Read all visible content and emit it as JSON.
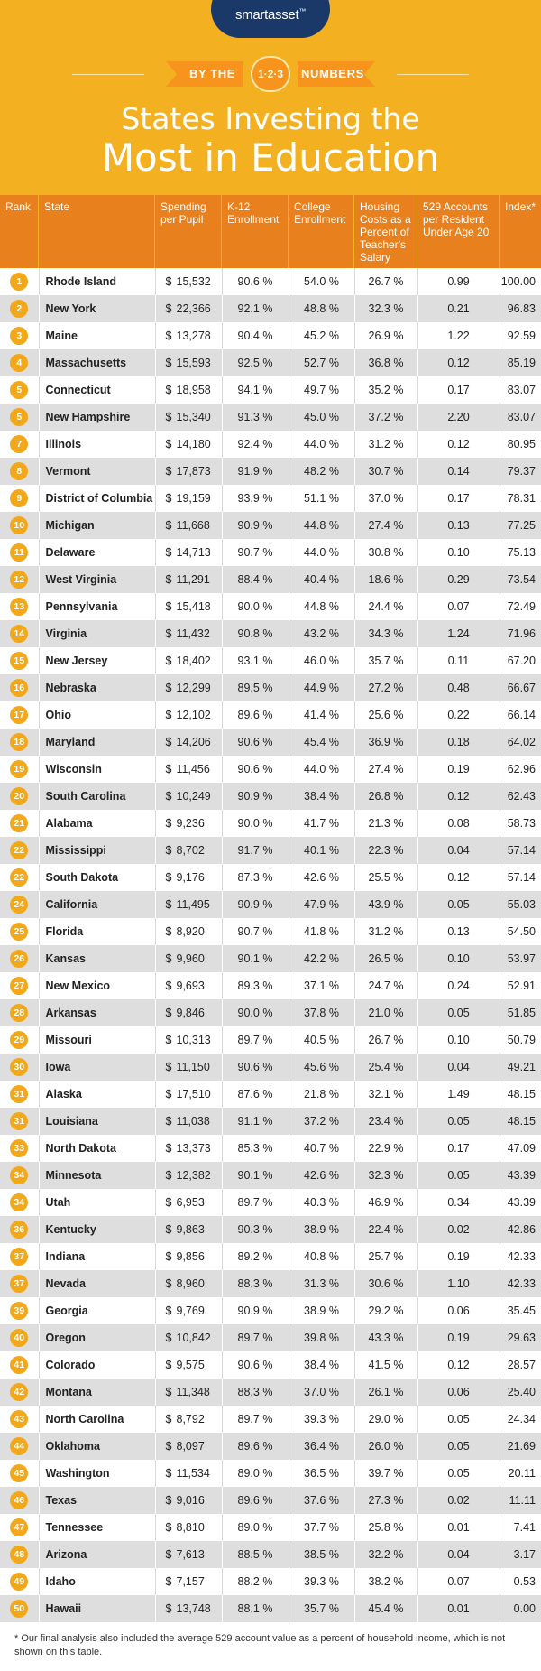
{
  "brand": {
    "name_a": "smart",
    "name_b": "asset",
    "trademark": "™"
  },
  "banner": {
    "left": "BY THE",
    "badge": "1·2·3",
    "right": "NUMBERS"
  },
  "title": {
    "line1": "States Investing the",
    "line2": "Most in Education"
  },
  "table": {
    "headers": [
      "Rank",
      "State",
      "Spending per Pupil",
      "K-12 Enrollment",
      "College Enrollment",
      "Housing Costs as a Percent of Teacher's Salary",
      "529 Accounts per Resident Under Age 20",
      "Index*"
    ],
    "rows": [
      {
        "rank": "1",
        "state": "Rhode Island",
        "cur": "$",
        "spend": "15,532",
        "k12": "90.6 %",
        "college": "54.0 %",
        "housing": "26.7 %",
        "accounts": "0.99",
        "index": "100.00"
      },
      {
        "rank": "2",
        "state": "New York",
        "cur": "$",
        "spend": "22,366",
        "k12": "92.1 %",
        "college": "48.8 %",
        "housing": "32.3 %",
        "accounts": "0.21",
        "index": "96.83"
      },
      {
        "rank": "3",
        "state": "Maine",
        "cur": "$",
        "spend": "13,278",
        "k12": "90.4 %",
        "college": "45.2 %",
        "housing": "26.9 %",
        "accounts": "1.22",
        "index": "92.59"
      },
      {
        "rank": "4",
        "state": "Massachusetts",
        "cur": "$",
        "spend": "15,593",
        "k12": "92.5 %",
        "college": "52.7 %",
        "housing": "36.8 %",
        "accounts": "0.12",
        "index": "85.19"
      },
      {
        "rank": "5",
        "state": "Connecticut",
        "cur": "$",
        "spend": "18,958",
        "k12": "94.1 %",
        "college": "49.7 %",
        "housing": "35.2 %",
        "accounts": "0.17",
        "index": "83.07"
      },
      {
        "rank": "5",
        "state": "New Hampshire",
        "cur": "$",
        "spend": "15,340",
        "k12": "91.3 %",
        "college": "45.0 %",
        "housing": "37.2 %",
        "accounts": "2.20",
        "index": "83.07"
      },
      {
        "rank": "7",
        "state": "Illinois",
        "cur": "$",
        "spend": "14,180",
        "k12": "92.4 %",
        "college": "44.0 %",
        "housing": "31.2 %",
        "accounts": "0.12",
        "index": "80.95"
      },
      {
        "rank": "8",
        "state": "Vermont",
        "cur": "$",
        "spend": "17,873",
        "k12": "91.9 %",
        "college": "48.2 %",
        "housing": "30.7 %",
        "accounts": "0.14",
        "index": "79.37"
      },
      {
        "rank": "9",
        "state": "District of Columbia",
        "cur": "$",
        "spend": "19,159",
        "k12": "93.9 %",
        "college": "51.1 %",
        "housing": "37.0 %",
        "accounts": "0.17",
        "index": "78.31"
      },
      {
        "rank": "10",
        "state": "Michigan",
        "cur": "$",
        "spend": "11,668",
        "k12": "90.9 %",
        "college": "44.8 %",
        "housing": "27.4 %",
        "accounts": "0.13",
        "index": "77.25"
      },
      {
        "rank": "11",
        "state": "Delaware",
        "cur": "$",
        "spend": "14,713",
        "k12": "90.7 %",
        "college": "44.0 %",
        "housing": "30.8 %",
        "accounts": "0.10",
        "index": "75.13"
      },
      {
        "rank": "12",
        "state": "West Virginia",
        "cur": "$",
        "spend": "11,291",
        "k12": "88.4 %",
        "college": "40.4 %",
        "housing": "18.6 %",
        "accounts": "0.29",
        "index": "73.54"
      },
      {
        "rank": "13",
        "state": "Pennsylvania",
        "cur": "$",
        "spend": "15,418",
        "k12": "90.0 %",
        "college": "44.8 %",
        "housing": "24.4 %",
        "accounts": "0.07",
        "index": "72.49"
      },
      {
        "rank": "14",
        "state": "Virginia",
        "cur": "$",
        "spend": "11,432",
        "k12": "90.8 %",
        "college": "43.2 %",
        "housing": "34.3 %",
        "accounts": "1.24",
        "index": "71.96"
      },
      {
        "rank": "15",
        "state": "New Jersey",
        "cur": "$",
        "spend": "18,402",
        "k12": "93.1 %",
        "college": "46.0 %",
        "housing": "35.7 %",
        "accounts": "0.11",
        "index": "67.20"
      },
      {
        "rank": "16",
        "state": "Nebraska",
        "cur": "$",
        "spend": "12,299",
        "k12": "89.5 %",
        "college": "44.9 %",
        "housing": "27.2 %",
        "accounts": "0.48",
        "index": "66.67"
      },
      {
        "rank": "17",
        "state": "Ohio",
        "cur": "$",
        "spend": "12,102",
        "k12": "89.6 %",
        "college": "41.4 %",
        "housing": "25.6 %",
        "accounts": "0.22",
        "index": "66.14"
      },
      {
        "rank": "18",
        "state": "Maryland",
        "cur": "$",
        "spend": "14,206",
        "k12": "90.6 %",
        "college": "45.4 %",
        "housing": "36.9 %",
        "accounts": "0.18",
        "index": "64.02"
      },
      {
        "rank": "19",
        "state": "Wisconsin",
        "cur": "$",
        "spend": "11,456",
        "k12": "90.6 %",
        "college": "44.0 %",
        "housing": "27.4 %",
        "accounts": "0.19",
        "index": "62.96"
      },
      {
        "rank": "20",
        "state": "South Carolina",
        "cur": "$",
        "spend": "10,249",
        "k12": "90.9 %",
        "college": "38.4 %",
        "housing": "26.8 %",
        "accounts": "0.12",
        "index": "62.43"
      },
      {
        "rank": "21",
        "state": "Alabama",
        "cur": "$",
        "spend": "9,236",
        "k12": "90.0 %",
        "college": "41.7 %",
        "housing": "21.3 %",
        "accounts": "0.08",
        "index": "58.73"
      },
      {
        "rank": "22",
        "state": "Mississippi",
        "cur": "$",
        "spend": "8,702",
        "k12": "91.7 %",
        "college": "40.1 %",
        "housing": "22.3 %",
        "accounts": "0.04",
        "index": "57.14"
      },
      {
        "rank": "22",
        "state": "South Dakota",
        "cur": "$",
        "spend": "9,176",
        "k12": "87.3 %",
        "college": "42.6 %",
        "housing": "25.5 %",
        "accounts": "0.12",
        "index": "57.14"
      },
      {
        "rank": "24",
        "state": "California",
        "cur": "$",
        "spend": "11,495",
        "k12": "90.9 %",
        "college": "47.9 %",
        "housing": "43.9 %",
        "accounts": "0.05",
        "index": "55.03"
      },
      {
        "rank": "25",
        "state": "Florida",
        "cur": "$",
        "spend": "8,920",
        "k12": "90.7 %",
        "college": "41.8 %",
        "housing": "31.2 %",
        "accounts": "0.13",
        "index": "54.50"
      },
      {
        "rank": "26",
        "state": "Kansas",
        "cur": "$",
        "spend": "9,960",
        "k12": "90.1 %",
        "college": "42.2 %",
        "housing": "26.5 %",
        "accounts": "0.10",
        "index": "53.97"
      },
      {
        "rank": "27",
        "state": "New Mexico",
        "cur": "$",
        "spend": "9,693",
        "k12": "89.3 %",
        "college": "37.1 %",
        "housing": "24.7 %",
        "accounts": "0.24",
        "index": "52.91"
      },
      {
        "rank": "28",
        "state": "Arkansas",
        "cur": "$",
        "spend": "9,846",
        "k12": "90.0 %",
        "college": "37.8 %",
        "housing": "21.0 %",
        "accounts": "0.05",
        "index": "51.85"
      },
      {
        "rank": "29",
        "state": "Missouri",
        "cur": "$",
        "spend": "10,313",
        "k12": "89.7 %",
        "college": "40.5 %",
        "housing": "26.7 %",
        "accounts": "0.10",
        "index": "50.79"
      },
      {
        "rank": "30",
        "state": "Iowa",
        "cur": "$",
        "spend": "11,150",
        "k12": "90.6 %",
        "college": "45.6 %",
        "housing": "25.4 %",
        "accounts": "0.04",
        "index": "49.21"
      },
      {
        "rank": "31",
        "state": "Alaska",
        "cur": "$",
        "spend": "17,510",
        "k12": "87.6 %",
        "college": "21.8 %",
        "housing": "32.1 %",
        "accounts": "1.49",
        "index": "48.15"
      },
      {
        "rank": "31",
        "state": "Louisiana",
        "cur": "$",
        "spend": "11,038",
        "k12": "91.1 %",
        "college": "37.2 %",
        "housing": "23.4 %",
        "accounts": "0.05",
        "index": "48.15"
      },
      {
        "rank": "33",
        "state": "North Dakota",
        "cur": "$",
        "spend": "13,373",
        "k12": "85.3 %",
        "college": "40.7 %",
        "housing": "22.9 %",
        "accounts": "0.17",
        "index": "47.09"
      },
      {
        "rank": "34",
        "state": "Minnesota",
        "cur": "$",
        "spend": "12,382",
        "k12": "90.1 %",
        "college": "42.6 %",
        "housing": "32.3 %",
        "accounts": "0.05",
        "index": "43.39"
      },
      {
        "rank": "34",
        "state": "Utah",
        "cur": "$",
        "spend": "6,953",
        "k12": "89.7 %",
        "college": "40.3 %",
        "housing": "46.9 %",
        "accounts": "0.34",
        "index": "43.39"
      },
      {
        "rank": "36",
        "state": "Kentucky",
        "cur": "$",
        "spend": "9,863",
        "k12": "90.3 %",
        "college": "38.9 %",
        "housing": "22.4 %",
        "accounts": "0.02",
        "index": "42.86"
      },
      {
        "rank": "37",
        "state": "Indiana",
        "cur": "$",
        "spend": "9,856",
        "k12": "89.2 %",
        "college": "40.8 %",
        "housing": "25.7 %",
        "accounts": "0.19",
        "index": "42.33"
      },
      {
        "rank": "37",
        "state": "Nevada",
        "cur": "$",
        "spend": "8,960",
        "k12": "88.3 %",
        "college": "31.3 %",
        "housing": "30.6 %",
        "accounts": "1.10",
        "index": "42.33"
      },
      {
        "rank": "39",
        "state": "Georgia",
        "cur": "$",
        "spend": "9,769",
        "k12": "90.9 %",
        "college": "38.9 %",
        "housing": "29.2 %",
        "accounts": "0.06",
        "index": "35.45"
      },
      {
        "rank": "40",
        "state": "Oregon",
        "cur": "$",
        "spend": "10,842",
        "k12": "89.7 %",
        "college": "39.8 %",
        "housing": "43.3 %",
        "accounts": "0.19",
        "index": "29.63"
      },
      {
        "rank": "41",
        "state": "Colorado",
        "cur": "$",
        "spend": "9,575",
        "k12": "90.6 %",
        "college": "38.4 %",
        "housing": "41.5 %",
        "accounts": "0.12",
        "index": "28.57"
      },
      {
        "rank": "42",
        "state": "Montana",
        "cur": "$",
        "spend": "11,348",
        "k12": "88.3 %",
        "college": "37.0 %",
        "housing": "26.1 %",
        "accounts": "0.06",
        "index": "25.40"
      },
      {
        "rank": "43",
        "state": "North Carolina",
        "cur": "$",
        "spend": "8,792",
        "k12": "89.7 %",
        "college": "39.3 %",
        "housing": "29.0 %",
        "accounts": "0.05",
        "index": "24.34"
      },
      {
        "rank": "44",
        "state": "Oklahoma",
        "cur": "$",
        "spend": "8,097",
        "k12": "89.6 %",
        "college": "36.4 %",
        "housing": "26.0 %",
        "accounts": "0.05",
        "index": "21.69"
      },
      {
        "rank": "45",
        "state": "Washington",
        "cur": "$",
        "spend": "11,534",
        "k12": "89.0 %",
        "college": "36.5 %",
        "housing": "39.7 %",
        "accounts": "0.05",
        "index": "20.11"
      },
      {
        "rank": "46",
        "state": "Texas",
        "cur": "$",
        "spend": "9,016",
        "k12": "89.6 %",
        "college": "37.6 %",
        "housing": "27.3 %",
        "accounts": "0.02",
        "index": "11.11"
      },
      {
        "rank": "47",
        "state": "Tennessee",
        "cur": "$",
        "spend": "8,810",
        "k12": "89.0 %",
        "college": "37.7 %",
        "housing": "25.8 %",
        "accounts": "0.01",
        "index": "7.41"
      },
      {
        "rank": "48",
        "state": "Arizona",
        "cur": "$",
        "spend": "7,613",
        "k12": "88.5 %",
        "college": "38.5 %",
        "housing": "32.2 %",
        "accounts": "0.04",
        "index": "3.17"
      },
      {
        "rank": "49",
        "state": "Idaho",
        "cur": "$",
        "spend": "7,157",
        "k12": "88.2 %",
        "college": "39.3 %",
        "housing": "38.2 %",
        "accounts": "0.07",
        "index": "0.53"
      },
      {
        "rank": "50",
        "state": "Hawaii",
        "cur": "$",
        "spend": "13,748",
        "k12": "88.1 %",
        "college": "35.7 %",
        "housing": "45.4 %",
        "accounts": "0.01",
        "index": "0.00"
      }
    ]
  },
  "footnote": "* Our final analysis also included the average 529 account value as a percent of household income, which is not shown on this table.",
  "colors": {
    "header_bg": "#f3b122",
    "table_header_bg": "#e8801d",
    "rank_circle": "#f3a81a",
    "logo_bg": "#1a3868",
    "stripe": "#dedede"
  }
}
